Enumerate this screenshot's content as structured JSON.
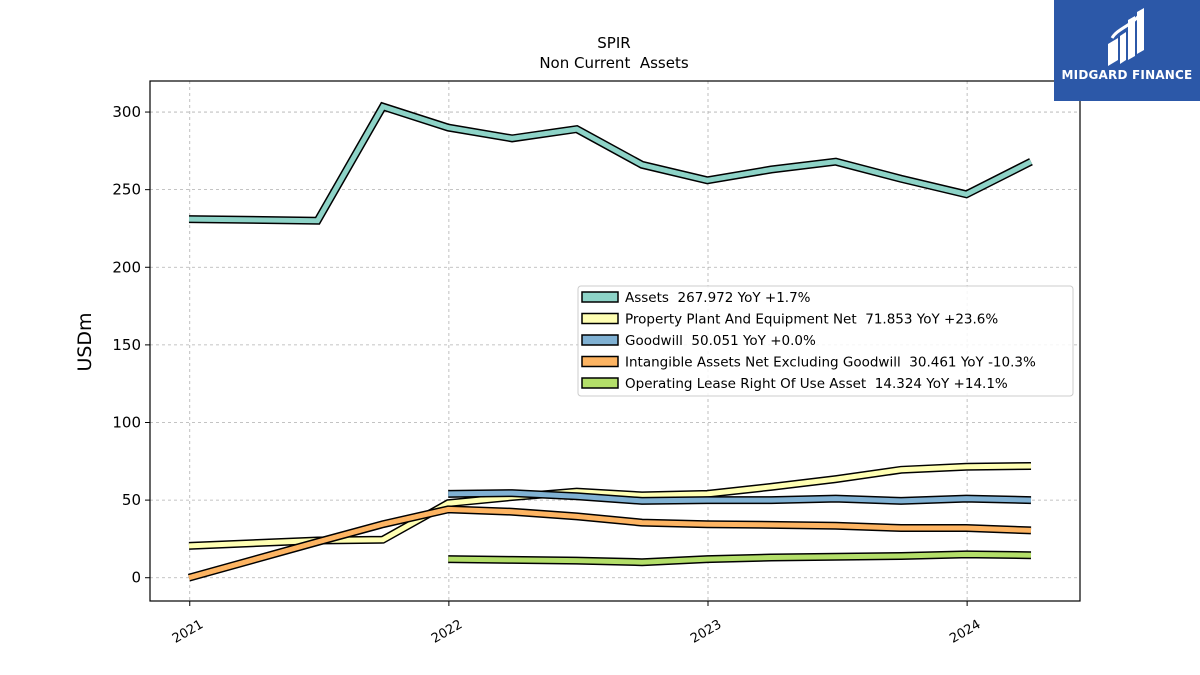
{
  "chart_data": {
    "type": "line",
    "title": "SPIR",
    "subtitle": "Non Current  Assets",
    "ylabel": "USDm",
    "xlabel": "",
    "ylim": [
      -15,
      320
    ],
    "xlim": [
      "2020-11-06",
      "2024-06-08"
    ],
    "x_ticks": [
      {
        "date": "2021-01-01",
        "label": "2021"
      },
      {
        "date": "2022-01-01",
        "label": "2022"
      },
      {
        "date": "2023-01-01",
        "label": "2023"
      },
      {
        "date": "2024-01-01",
        "label": "2024"
      }
    ],
    "y_ticks": [
      0,
      50,
      100,
      150,
      200,
      250,
      300
    ],
    "grid": true,
    "legend_position": "center-right",
    "series": [
      {
        "name": "Assets",
        "legend": "Assets  267.972 YoY +1.7%",
        "color": "#8dd3c7",
        "points": [
          [
            "2020-12-31",
            231.0
          ],
          [
            "2021-06-30",
            230.0
          ],
          [
            "2021-09-30",
            303.5
          ],
          [
            "2021-12-31",
            290.0
          ],
          [
            "2022-03-31",
            283.0
          ],
          [
            "2022-06-30",
            289.0
          ],
          [
            "2022-09-30",
            266.0
          ],
          [
            "2022-12-31",
            256.0
          ],
          [
            "2023-03-31",
            263.0
          ],
          [
            "2023-06-30",
            268.0
          ],
          [
            "2023-09-30",
            257.0
          ],
          [
            "2023-12-31",
            247.0
          ],
          [
            "2024-03-31",
            268.0
          ]
        ]
      },
      {
        "name": "Property Plant And Equipment Net",
        "legend": "Property Plant And Equipment Net  71.853 YoY +23.6%",
        "color": "#ffffb3",
        "points": [
          [
            "2020-12-31",
            20.5
          ],
          [
            "2021-06-30",
            24.0
          ],
          [
            "2021-09-30",
            24.5
          ],
          [
            "2021-12-31",
            48.0
          ],
          [
            "2022-03-31",
            52.0
          ],
          [
            "2022-06-30",
            55.5
          ],
          [
            "2022-09-30",
            53.0
          ],
          [
            "2022-12-31",
            54.0
          ],
          [
            "2023-03-31",
            58.5
          ],
          [
            "2023-06-30",
            63.5
          ],
          [
            "2023-09-30",
            69.5
          ],
          [
            "2023-12-31",
            71.5
          ],
          [
            "2024-03-31",
            72.0
          ]
        ]
      },
      {
        "name": "Goodwill",
        "legend": "Goodwill  50.051 YoY +0.0%",
        "color": "#80b1d3",
        "points": [
          [
            "2021-12-31",
            54.0
          ],
          [
            "2022-03-31",
            54.5
          ],
          [
            "2022-06-30",
            52.5
          ],
          [
            "2022-09-30",
            49.5
          ],
          [
            "2022-12-31",
            50.0
          ],
          [
            "2023-03-31",
            50.0
          ],
          [
            "2023-06-30",
            51.0
          ],
          [
            "2023-09-30",
            49.5
          ],
          [
            "2023-12-31",
            51.0
          ],
          [
            "2024-03-31",
            50.0
          ]
        ]
      },
      {
        "name": "Intangible Assets Net Excluding Goodwill",
        "legend": "Intangible Assets Net Excluding Goodwill  30.461 YoY -10.3%",
        "color": "#fdb462",
        "points": [
          [
            "2020-12-31",
            0.0
          ],
          [
            "2021-06-30",
            23.0
          ],
          [
            "2021-09-30",
            34.5
          ],
          [
            "2021-12-31",
            44.0
          ],
          [
            "2022-03-31",
            42.5
          ],
          [
            "2022-06-30",
            39.5
          ],
          [
            "2022-09-30",
            35.5
          ],
          [
            "2022-12-31",
            34.5
          ],
          [
            "2023-03-31",
            34.0
          ],
          [
            "2023-06-30",
            33.5
          ],
          [
            "2023-09-30",
            32.0
          ],
          [
            "2023-12-31",
            32.0
          ],
          [
            "2024-03-31",
            30.5
          ]
        ]
      },
      {
        "name": "Operating Lease Right Of Use Asset",
        "legend": "Operating Lease Right Of Use Asset  14.324 YoY +14.1%",
        "color": "#b3de69",
        "points": [
          [
            "2021-12-31",
            12.0
          ],
          [
            "2022-03-31",
            11.5
          ],
          [
            "2022-06-30",
            11.0
          ],
          [
            "2022-09-30",
            10.0
          ],
          [
            "2022-12-31",
            12.0
          ],
          [
            "2023-03-31",
            13.0
          ],
          [
            "2023-06-30",
            13.5
          ],
          [
            "2023-09-30",
            14.0
          ],
          [
            "2023-12-31",
            15.0
          ],
          [
            "2024-03-31",
            14.5
          ]
        ]
      }
    ]
  },
  "logo": {
    "name": "MIDGARD FINANCE",
    "background": "#2c58a8"
  }
}
